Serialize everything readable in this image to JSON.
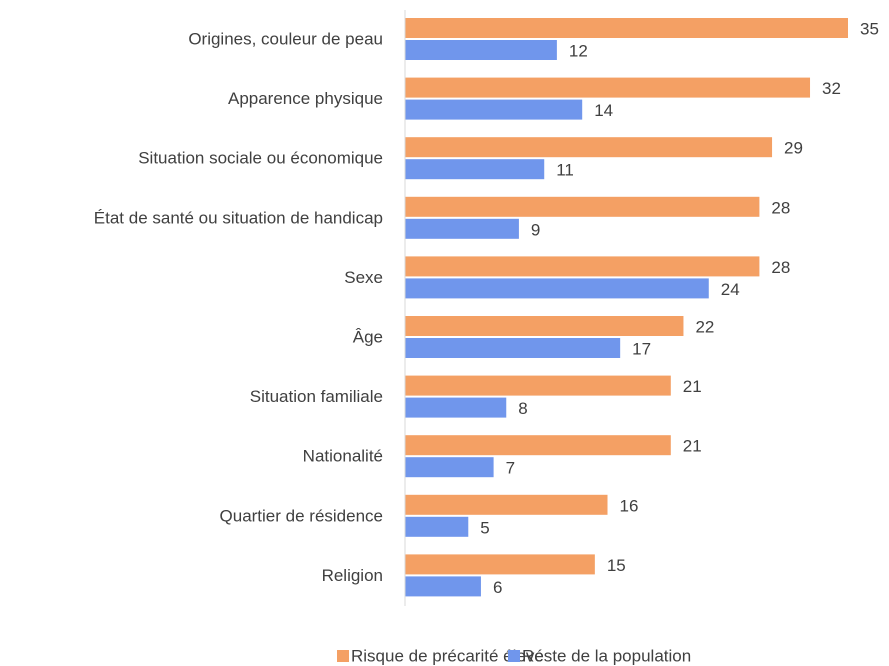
{
  "chart_data": {
    "type": "bar",
    "orientation": "horizontal",
    "categories": [
      "Origines, couleur de peau",
      "Apparence physique",
      "Situation sociale ou économique",
      "État de santé ou situation de handicap",
      "Sexe",
      "Âge",
      "Situation familiale",
      "Nationalité",
      "Quartier de résidence",
      "Religion"
    ],
    "series": [
      {
        "name": "Risque de précarité élevé",
        "color": "#f4a064",
        "values": [
          35,
          32,
          29,
          28,
          28,
          22,
          21,
          21,
          16,
          15
        ]
      },
      {
        "name": "Reste de la population",
        "color": "#7096ec",
        "values": [
          12,
          14,
          11,
          9,
          24,
          17,
          8,
          7,
          5,
          6
        ]
      }
    ],
    "xlim": [
      0,
      35
    ],
    "legend": "bottom"
  }
}
